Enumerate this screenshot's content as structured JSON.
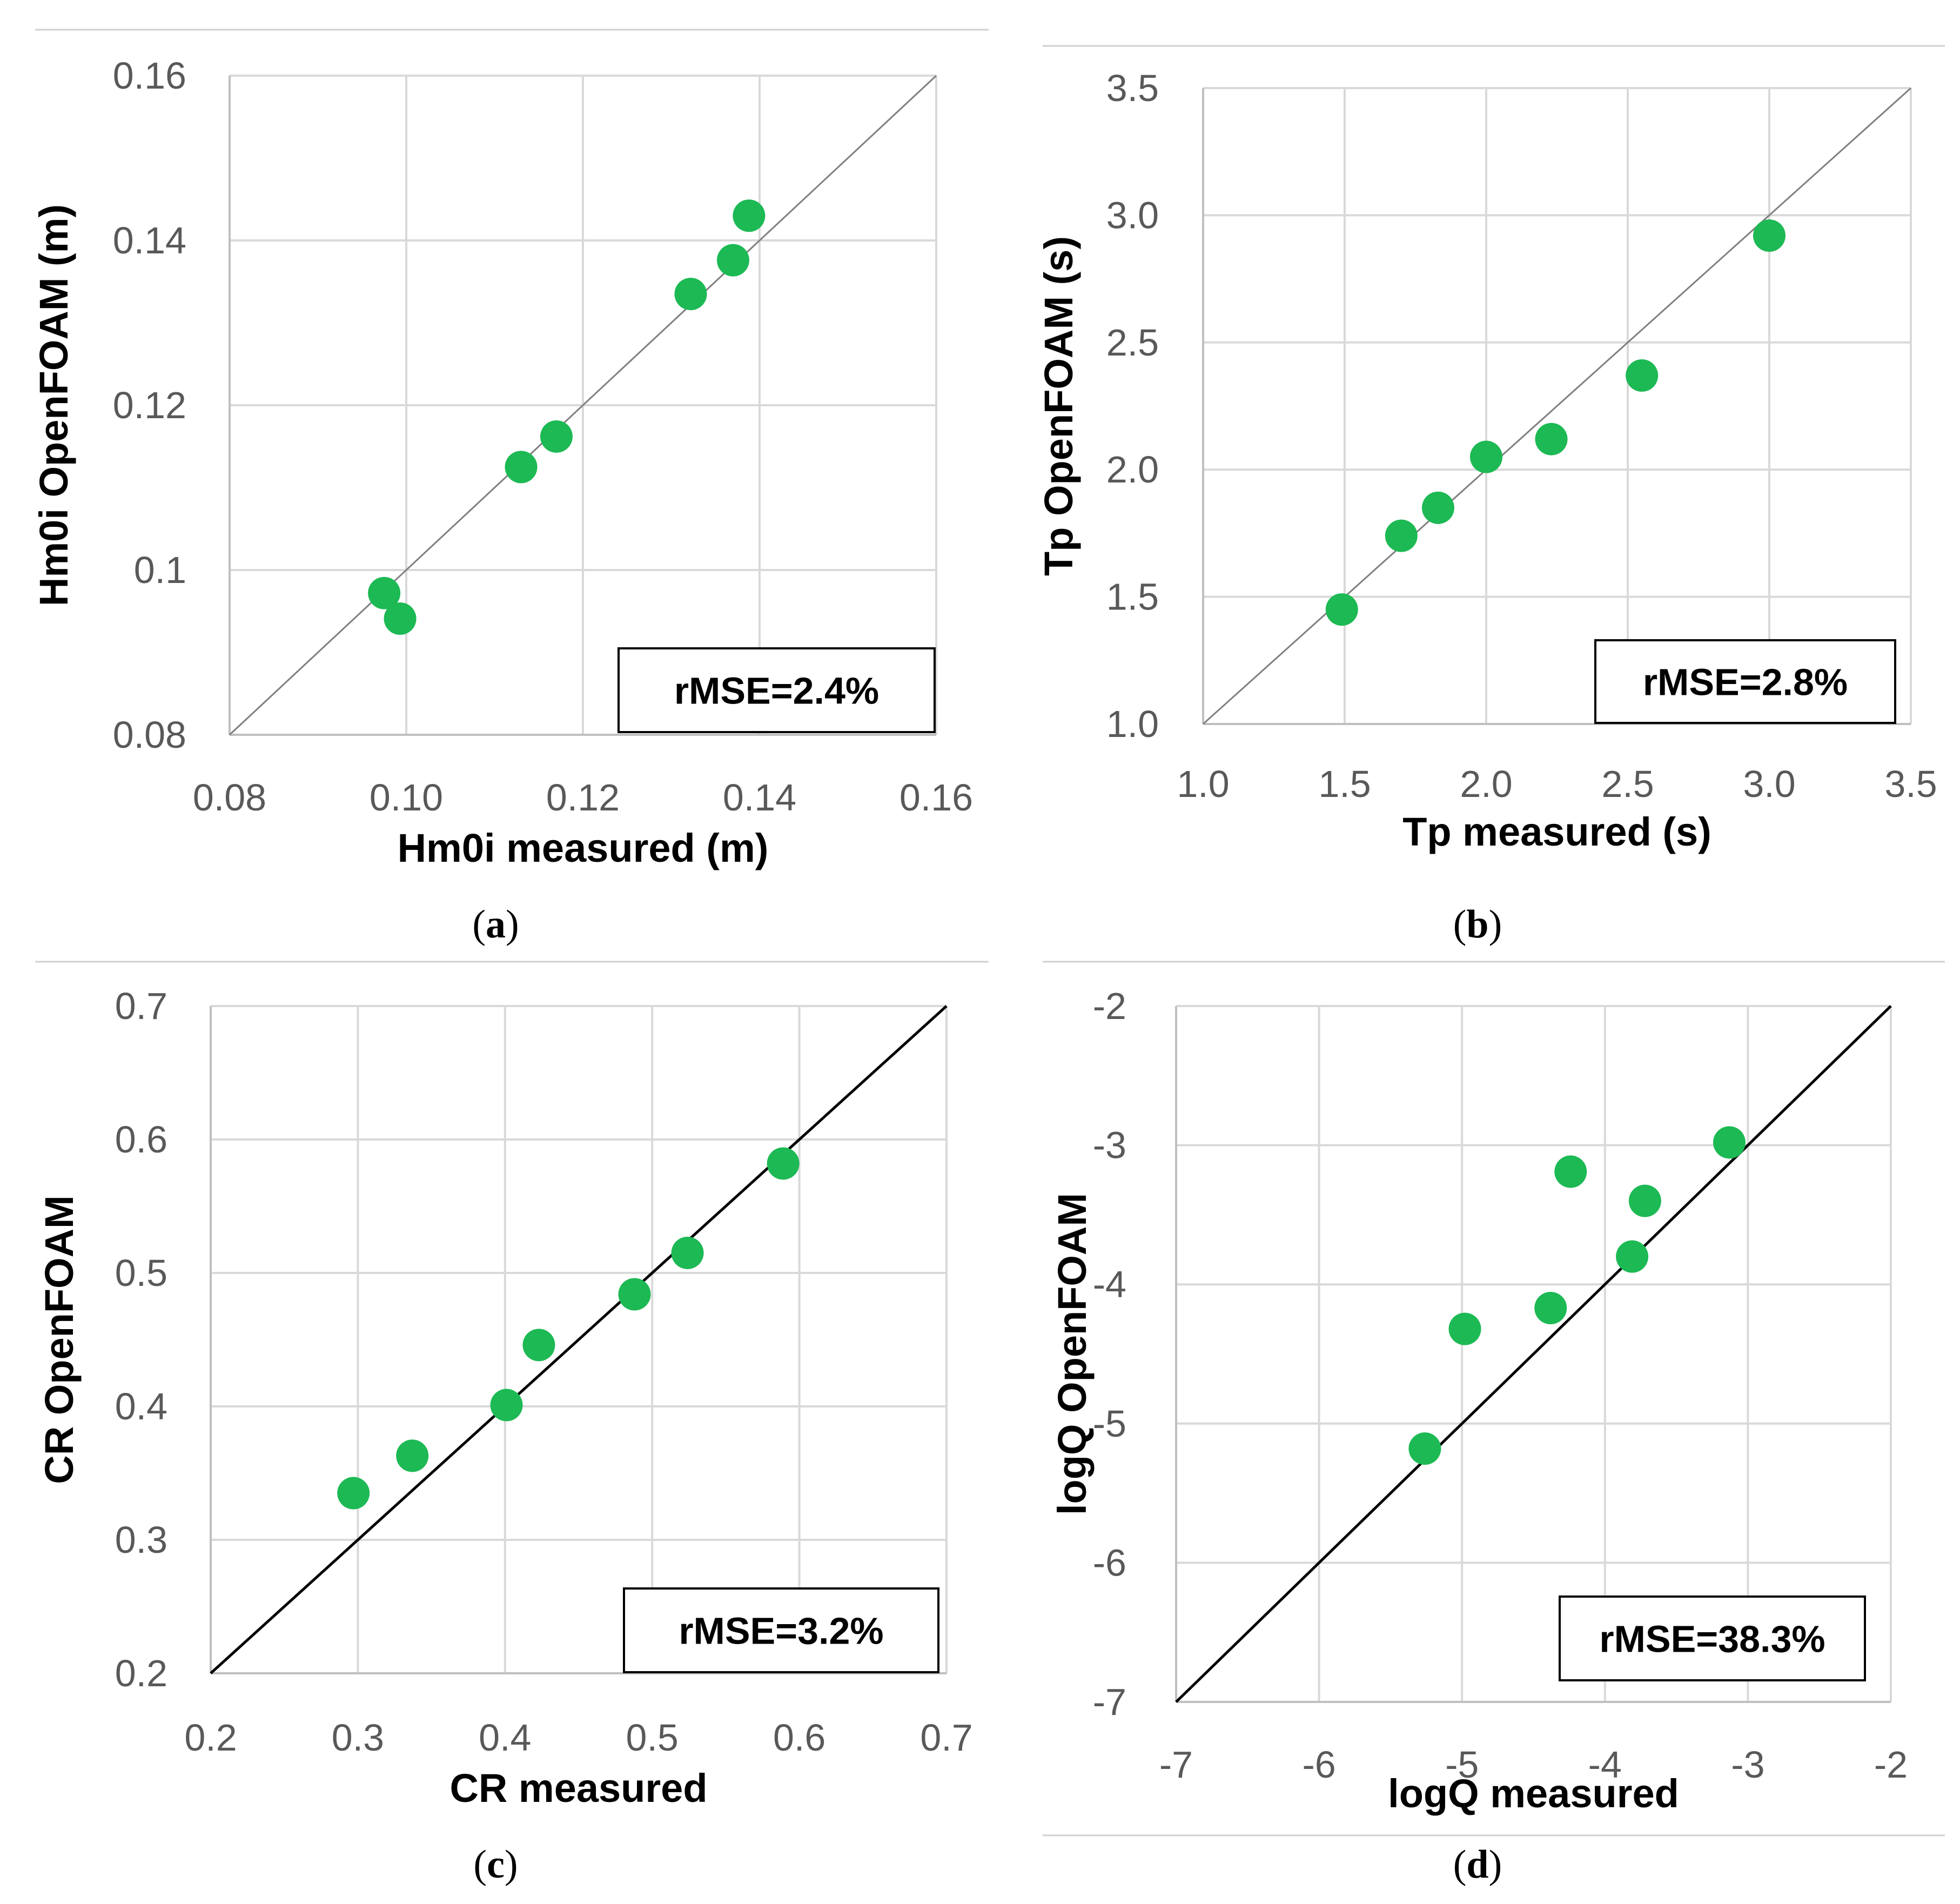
{
  "style": {
    "marker_color": "#1db954",
    "grid_color": "#d9d9d9",
    "axis_color": "#bfbfbf"
  },
  "chart_data": [
    {
      "id": "a",
      "type": "scatter",
      "caption_letter": "a",
      "xlabel": "Hm0i measured (m)",
      "ylabel": "Hm0i OpenFOAM (m)",
      "xlim": [
        0.08,
        0.16
      ],
      "ylim": [
        0.08,
        0.16
      ],
      "xticks": [
        "0.08",
        "0.10",
        "0.12",
        "0.14",
        "0.16"
      ],
      "yticks": [
        "0.08",
        "0.1",
        "0.12",
        "0.14",
        "0.16"
      ],
      "x_gridlines": [
        0.1,
        0.12,
        0.14,
        0.16
      ],
      "y_gridlines": [
        0.1,
        0.12,
        0.14,
        0.16
      ],
      "rmse_label": "rMSE=2.4%",
      "points": [
        {
          "x": 0.0975,
          "y": 0.0972
        },
        {
          "x": 0.0993,
          "y": 0.0941
        },
        {
          "x": 0.113,
          "y": 0.1125
        },
        {
          "x": 0.117,
          "y": 0.1162
        },
        {
          "x": 0.1322,
          "y": 0.1335
        },
        {
          "x": 0.137,
          "y": 0.1376
        },
        {
          "x": 0.1388,
          "y": 0.143
        }
      ]
    },
    {
      "id": "b",
      "type": "scatter",
      "caption_letter": "b",
      "xlabel": "Tp measured (s)",
      "ylabel": "Tp OpenFOAM (s)",
      "xlim": [
        1.0,
        3.5
      ],
      "ylim": [
        1.0,
        3.5
      ],
      "xticks": [
        "1.0",
        "1.5",
        "2.0",
        "2.5",
        "3.0",
        "3.5"
      ],
      "yticks": [
        "1.0",
        "1.5",
        "2.0",
        "2.5",
        "3.0",
        "3.5"
      ],
      "x_gridlines": [
        1.5,
        2.0,
        2.5,
        3.0,
        3.5
      ],
      "y_gridlines": [
        1.5,
        2.0,
        2.5,
        3.0,
        3.5
      ],
      "rmse_label": "rMSE=2.8%",
      "points": [
        {
          "x": 1.49,
          "y": 1.45
        },
        {
          "x": 1.7,
          "y": 1.74
        },
        {
          "x": 1.83,
          "y": 1.85
        },
        {
          "x": 2.0,
          "y": 2.05
        },
        {
          "x": 2.23,
          "y": 2.12
        },
        {
          "x": 2.55,
          "y": 2.37
        },
        {
          "x": 3.0,
          "y": 2.92
        }
      ]
    },
    {
      "id": "c",
      "type": "scatter",
      "caption_letter": "c",
      "xlabel": "CR measured",
      "ylabel": "CR OpenFOAM",
      "xlim": [
        0.2,
        0.7
      ],
      "ylim": [
        0.2,
        0.7
      ],
      "xticks": [
        "0.2",
        "0.3",
        "0.4",
        "0.5",
        "0.6",
        "0.7"
      ],
      "yticks": [
        "0.2",
        "0.3",
        "0.4",
        "0.5",
        "0.6",
        "0.7"
      ],
      "x_gridlines": [
        0.3,
        0.4,
        0.5,
        0.6,
        0.7
      ],
      "y_gridlines": [
        0.3,
        0.4,
        0.5,
        0.6,
        0.7
      ],
      "rmse_label": "rMSE=3.2%",
      "points": [
        {
          "x": 0.297,
          "y": 0.335
        },
        {
          "x": 0.337,
          "y": 0.363
        },
        {
          "x": 0.401,
          "y": 0.401
        },
        {
          "x": 0.423,
          "y": 0.446
        },
        {
          "x": 0.488,
          "y": 0.484
        },
        {
          "x": 0.524,
          "y": 0.515
        },
        {
          "x": 0.589,
          "y": 0.582
        }
      ]
    },
    {
      "id": "d",
      "type": "scatter",
      "caption_letter": "d",
      "xlabel": "logQ measured",
      "ylabel": "logQ OpenFOAM",
      "xlim": [
        -7,
        -2
      ],
      "ylim": [
        -7,
        -2
      ],
      "xticks": [
        "-7",
        "-6",
        "-5",
        "-4",
        "-3",
        "-2"
      ],
      "yticks": [
        "-7",
        "-6",
        "-5",
        "-4",
        "-3",
        "-2"
      ],
      "x_gridlines": [
        -6,
        -5,
        -4,
        -3,
        -2
      ],
      "y_gridlines": [
        -6,
        -5,
        -4,
        -3,
        -2
      ],
      "rmse_label": "rMSE=38.3%",
      "points": [
        {
          "x": -5.26,
          "y": -5.18
        },
        {
          "x": -4.98,
          "y": -4.32
        },
        {
          "x": -4.38,
          "y": -4.17
        },
        {
          "x": -4.24,
          "y": -3.19
        },
        {
          "x": -3.81,
          "y": -3.8
        },
        {
          "x": -3.72,
          "y": -3.4
        },
        {
          "x": -3.13,
          "y": -2.98
        }
      ]
    }
  ]
}
